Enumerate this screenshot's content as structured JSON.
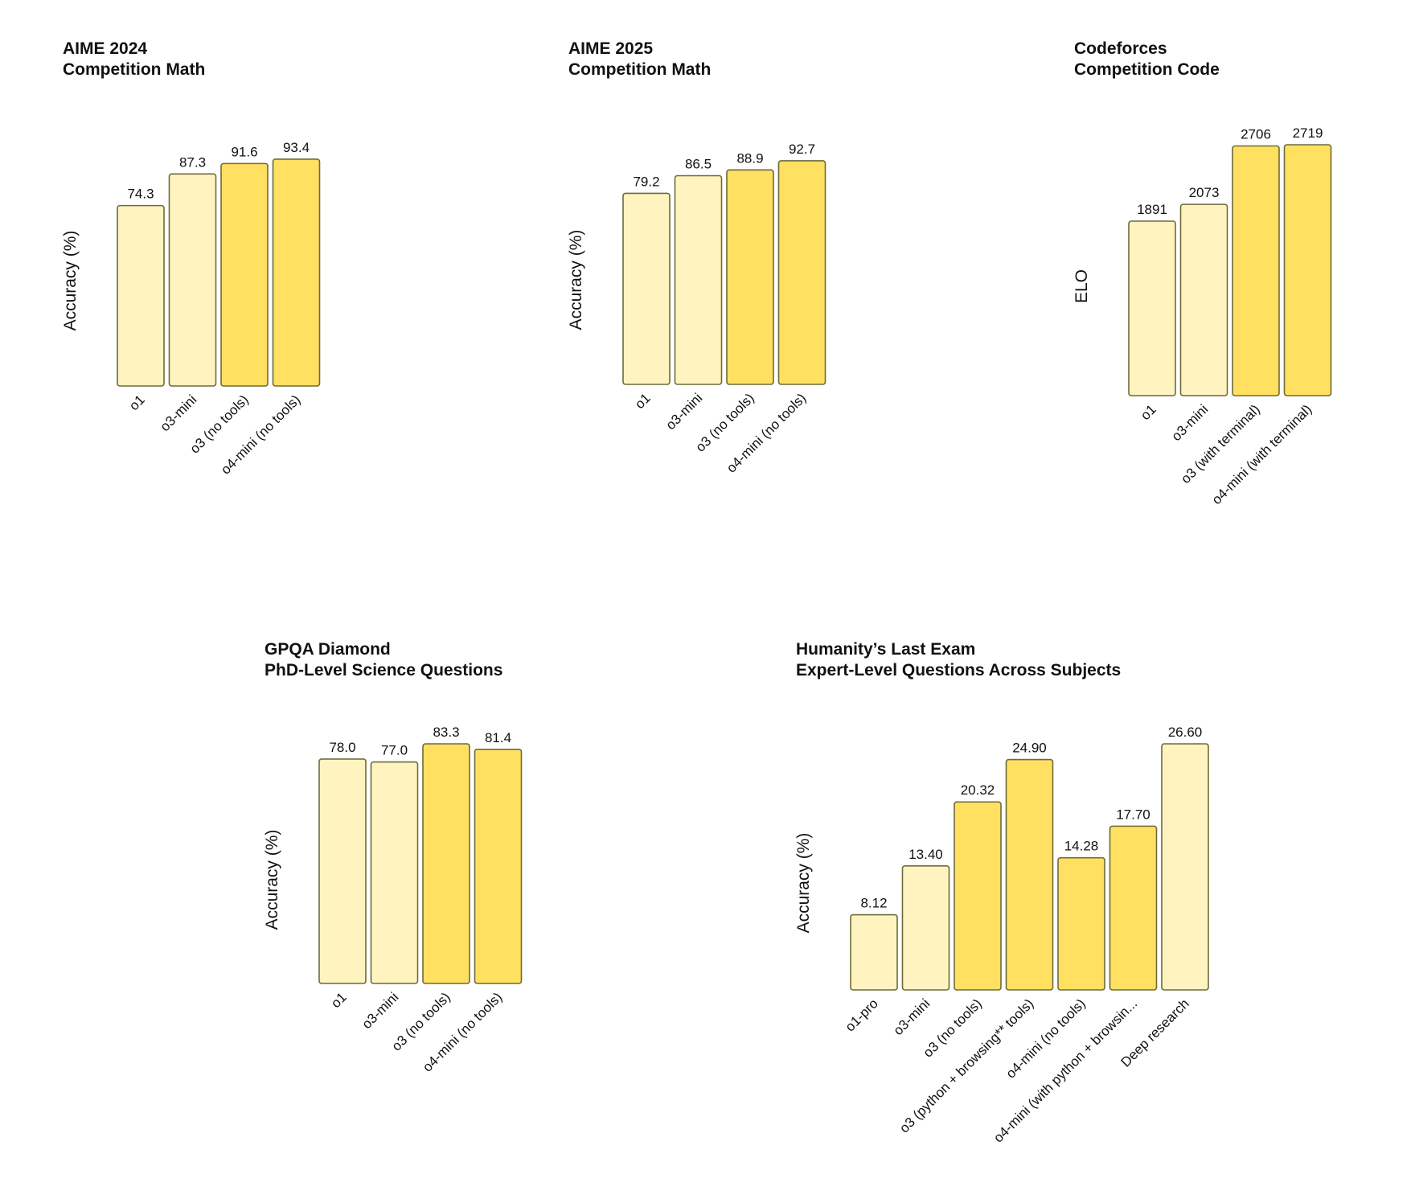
{
  "colors": {
    "light_bar": "#fff3c0",
    "strong_bar": "#ffe060",
    "bar_stroke": "#6e6a3a"
  },
  "chart_data": [
    {
      "type": "bar",
      "title": "AIME 2024",
      "subtitle": "Competition Math",
      "ylabel": "Accuracy (%)",
      "categories": [
        "o1",
        "o3-mini",
        "o3 (no tools)",
        "o4-mini (no tools)"
      ],
      "values": [
        74.3,
        87.3,
        91.6,
        93.4
      ],
      "value_labels": [
        "74.3",
        "87.3",
        "91.6",
        "93.4"
      ],
      "highlight": [
        false,
        false,
        true,
        true
      ],
      "ylim": [
        0,
        100
      ],
      "grid": false,
      "legend": "none"
    },
    {
      "type": "bar",
      "title": "AIME 2025",
      "subtitle": "Competition Math",
      "ylabel": "Accuracy (%)",
      "categories": [
        "o1",
        "o3-mini",
        "o3 (no tools)",
        "o4-mini (no tools)"
      ],
      "values": [
        79.2,
        86.5,
        88.9,
        92.7
      ],
      "value_labels": [
        "79.2",
        "86.5",
        "88.9",
        "92.7"
      ],
      "highlight": [
        false,
        false,
        true,
        true
      ],
      "ylim": [
        0,
        100
      ],
      "grid": false,
      "legend": "none"
    },
    {
      "type": "bar",
      "title": "Codeforces",
      "subtitle": "Competition Code",
      "ylabel": "ELO",
      "categories": [
        "o1",
        "o3-mini",
        "o3 (with terminal)",
        "o4-mini (with terminal)"
      ],
      "values": [
        1891,
        2073,
        2706,
        2719
      ],
      "value_labels": [
        "1891",
        "2073",
        "2706",
        "2719"
      ],
      "highlight": [
        false,
        false,
        true,
        true
      ],
      "ylim": [
        0,
        2719
      ],
      "grid": false,
      "legend": "none"
    },
    {
      "type": "bar",
      "title": "GPQA Diamond",
      "subtitle": "PhD-Level Science Questions",
      "ylabel": "Accuracy (%)",
      "categories": [
        "o1",
        "o3-mini",
        "o3 (no tools)",
        "o4-mini (no tools)"
      ],
      "values": [
        78.0,
        77.0,
        83.3,
        81.4
      ],
      "value_labels": [
        "78.0",
        "77.0",
        "83.3",
        "81.4"
      ],
      "highlight": [
        false,
        false,
        true,
        true
      ],
      "ylim": [
        0,
        83.3
      ],
      "grid": false,
      "legend": "none"
    },
    {
      "type": "bar",
      "title": "Humanity’s Last Exam",
      "subtitle": "Expert-Level Questions Across Subjects",
      "ylabel": "Accuracy (%)",
      "categories": [
        "o1-pro",
        "o3-mini",
        "o3 (no tools)",
        "o3 (python + browsing** tools)",
        "o4-mini (no tools)",
        "o4-mini (with python + browsin...",
        "Deep research"
      ],
      "values": [
        8.12,
        13.4,
        20.32,
        24.9,
        14.28,
        17.7,
        26.6
      ],
      "value_labels": [
        "8.12",
        "13.40",
        "20.32",
        "24.90",
        "14.28",
        "17.70",
        "26.60"
      ],
      "highlight": [
        false,
        false,
        true,
        true,
        true,
        true,
        false
      ],
      "ylim": [
        0,
        26.6
      ],
      "grid": false,
      "legend": "none"
    }
  ]
}
